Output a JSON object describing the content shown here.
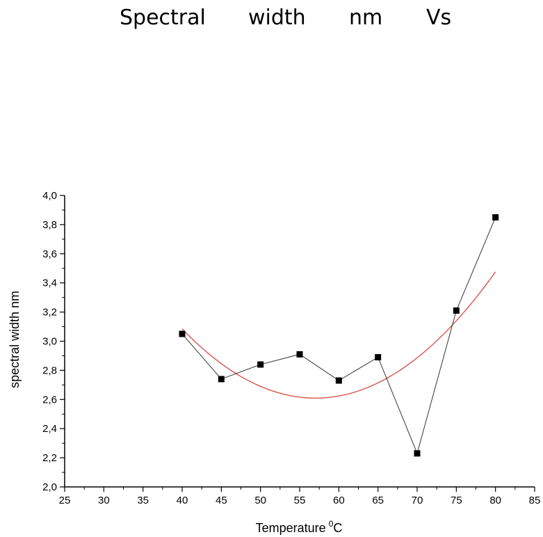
{
  "title_words": [
    "Spectral",
    "width",
    "nm",
    "Vs"
  ],
  "chart_data": {
    "type": "scatter",
    "title": "Spectral width nm Vs",
    "xlabel": "Temperature",
    "xlabel_sup": "0",
    "xlabel_unit": "C",
    "ylabel": "spectral width nm",
    "xlim": [
      25,
      85
    ],
    "ylim": [
      2.0,
      4.0
    ],
    "xticks": [
      25,
      30,
      35,
      40,
      45,
      50,
      55,
      60,
      65,
      70,
      75,
      80,
      85
    ],
    "yticks": [
      2.0,
      2.2,
      2.4,
      2.6,
      2.8,
      3.0,
      3.2,
      3.4,
      3.6,
      3.8,
      4.0
    ],
    "decimal_separator": ",",
    "grid": false,
    "series": [
      {
        "marker": "square",
        "line": true,
        "color": "#000000",
        "x": [
          40,
          45,
          50,
          55,
          60,
          65,
          70,
          75,
          80
        ],
        "y": [
          3.05,
          2.74,
          2.84,
          2.91,
          2.73,
          2.89,
          2.23,
          3.21,
          3.85
        ]
      }
    ],
    "fit": {
      "type": "quadratic",
      "color": "#d9534f",
      "x_range": [
        40,
        80
      ],
      "coefficients": [
        0.00164,
        -0.187,
        7.94
      ]
    }
  }
}
